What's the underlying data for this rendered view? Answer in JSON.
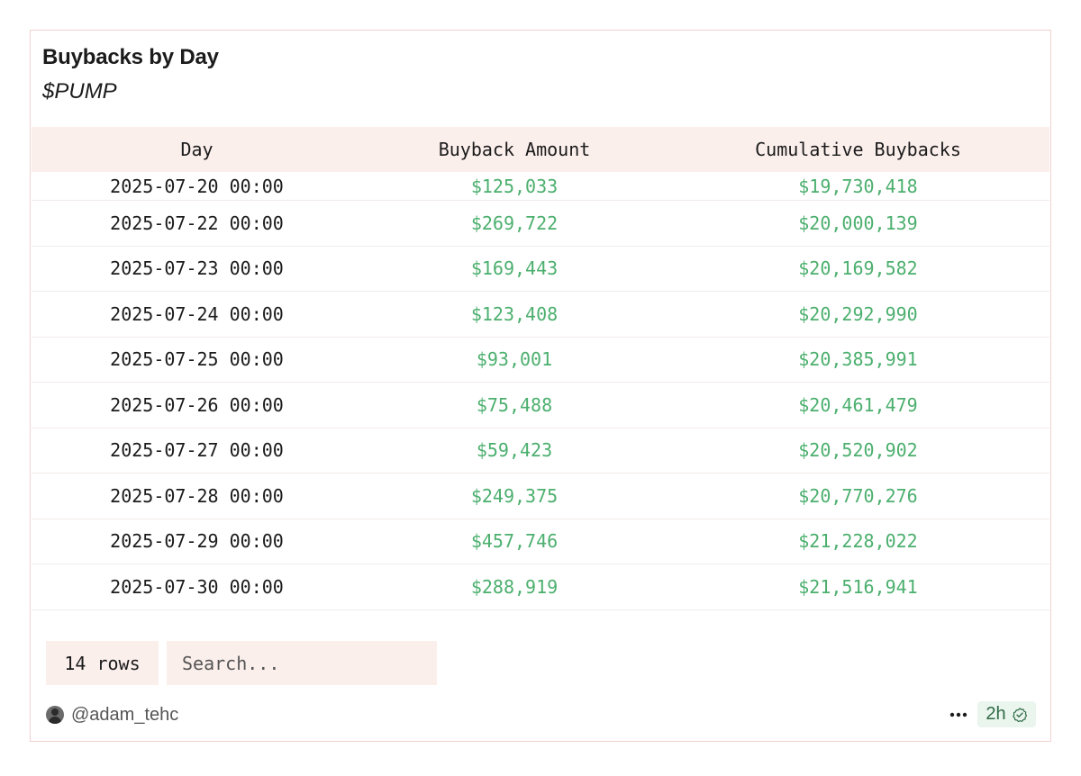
{
  "card": {
    "title": "Buybacks by Day",
    "subtitle": "$PUMP"
  },
  "table": {
    "columns": [
      "Day",
      "Buyback Amount",
      "Cumulative Buybacks"
    ],
    "rows": [
      {
        "day": "2025-07-20 00:00",
        "amount": "$125,033",
        "cumulative": "$19,730,418"
      },
      {
        "day": "2025-07-22 00:00",
        "amount": "$269,722",
        "cumulative": "$20,000,139"
      },
      {
        "day": "2025-07-23 00:00",
        "amount": "$169,443",
        "cumulative": "$20,169,582"
      },
      {
        "day": "2025-07-24 00:00",
        "amount": "$123,408",
        "cumulative": "$20,292,990"
      },
      {
        "day": "2025-07-25 00:00",
        "amount": "$93,001",
        "cumulative": "$20,385,991"
      },
      {
        "day": "2025-07-26 00:00",
        "amount": "$75,488",
        "cumulative": "$20,461,479"
      },
      {
        "day": "2025-07-27 00:00",
        "amount": "$59,423",
        "cumulative": "$20,520,902"
      },
      {
        "day": "2025-07-28 00:00",
        "amount": "$249,375",
        "cumulative": "$20,770,276"
      },
      {
        "day": "2025-07-29 00:00",
        "amount": "$457,746",
        "cumulative": "$21,228,022"
      },
      {
        "day": "2025-07-30 00:00",
        "amount": "$288,919",
        "cumulative": "$21,516,941"
      }
    ]
  },
  "controls": {
    "rows_count": "14 rows",
    "search_placeholder": "Search..."
  },
  "footer": {
    "username": "@adam_tehc",
    "time_ago": "2h",
    "more_icon": "more-horizontal-icon",
    "verified_icon": "check-circle-icon",
    "avatar_icon": "user-avatar"
  },
  "colors": {
    "accent_background": "#fbefec",
    "positive_value": "#4caf6e",
    "card_border": "#f1d2cf",
    "time_badge_background": "#eaf5ee"
  }
}
